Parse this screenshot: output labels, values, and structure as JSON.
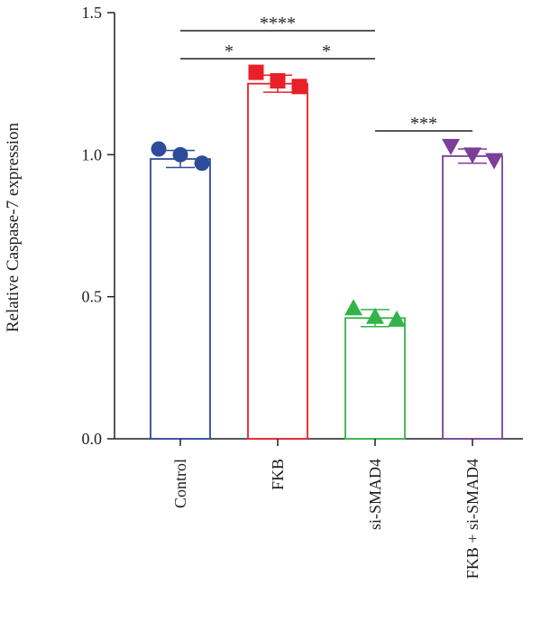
{
  "chart_data": {
    "type": "bar",
    "ylabel": "Relative Caspase-7 expression",
    "xlabel": "",
    "ylim": [
      0,
      1.5
    ],
    "yticks": [
      "0.0",
      "0.5",
      "1.0",
      "1.5"
    ],
    "grid": false,
    "categories": [
      "Control",
      "FKB",
      "si-SMAD4",
      "FKB + si-SMAD4"
    ],
    "colors": [
      "#2e4b9b",
      "#e8202a",
      "#33b34a",
      "#7b3f98"
    ],
    "markers": [
      "circle",
      "square",
      "triangle-up",
      "triangle-down"
    ],
    "values": [
      0.985,
      1.25,
      0.425,
      0.995
    ],
    "error": [
      0.03,
      0.03,
      0.03,
      0.025
    ],
    "points": [
      [
        1.02,
        1.0,
        0.97
      ],
      [
        1.29,
        1.26,
        1.24
      ],
      [
        0.46,
        0.43,
        0.42
      ],
      [
        1.03,
        1.0,
        0.98
      ]
    ],
    "significance": [
      {
        "from": 0,
        "to": 2,
        "label": "****"
      },
      {
        "from": 0,
        "to": 1,
        "label": "*"
      },
      {
        "from": 1,
        "to": 2,
        "label": "*"
      },
      {
        "from": 2,
        "to": 3,
        "label": "***"
      }
    ]
  }
}
